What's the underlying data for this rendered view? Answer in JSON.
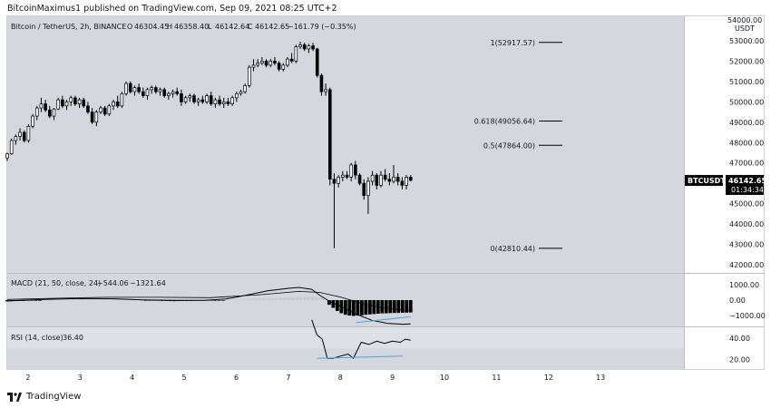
{
  "header": {
    "publisher_line": "BitcoinMaximus1 published on TradingView.com, Sep 09, 2021 08:25 UTC+2"
  },
  "footer": {
    "brand": "TradingView",
    "logo_icon": "tradingview-logo-icon"
  },
  "colors": {
    "up": "#ffffff",
    "down": "#000000",
    "pane_bg": "#d4d8de",
    "rsi_band": "#dde0e5",
    "hist_pos": "#c9cbd0",
    "hist_neg": "#000000",
    "trendline": "#4aa3df",
    "price_tag_bg": "#000000"
  },
  "chart_data": {
    "type": "candlestick",
    "symbol_line": {
      "title": "Bitcoin / TetherUS, 2h, BINANCE",
      "open": "O",
      "open_value": "46304.45",
      "high": "H",
      "high_value": "46358.40",
      "low": "L",
      "low_value": "46142.64",
      "close": "C",
      "close_value": "46142.65",
      "change": "−161.79 (−0.35%)"
    },
    "price_axis": {
      "ticks": [
        42000,
        43000,
        44000,
        45000,
        46000,
        47000,
        48000,
        49000,
        50000,
        51000,
        52000,
        53000
      ],
      "tick_labels": [
        "42000.00",
        "43000.00",
        "44000.00",
        "45000.00",
        "46000.00",
        "47000.00",
        "48000.00",
        "49000.00",
        "50000.00",
        "51000.00",
        "52000.00",
        "53000.00"
      ],
      "top_labels": [
        "54000.00",
        "USDT"
      ],
      "ylim": [
        41600,
        54200
      ]
    },
    "x_axis": {
      "ticks": [
        "2",
        "3",
        "4",
        "5",
        "6",
        "7",
        "8",
        "9",
        "10",
        "11",
        "12",
        "13"
      ],
      "tick_day_values": [
        2,
        3,
        4,
        5,
        6,
        7,
        8,
        9,
        10,
        11,
        12,
        13
      ],
      "xlim": [
        1.6,
        14.6
      ]
    },
    "fib_levels": [
      {
        "ratio": "1",
        "price": 52917.57,
        "label": "1(52917.57)"
      },
      {
        "ratio": "0.618",
        "price": 49056.64,
        "label": "0.618(49056.64)"
      },
      {
        "ratio": "0.5",
        "price": 47864.0,
        "label": "0.5(47864.00)"
      },
      {
        "ratio": "0",
        "price": 42810.44,
        "label": "0(42810.44)"
      }
    ],
    "price_tag": {
      "symbol": "BTCUSDT",
      "price": "46142.65",
      "countdown": "01:34:34",
      "value": 46142.65
    },
    "candles_day": [
      1.6,
      9.35
    ],
    "candles": [
      [
        47250,
        47500,
        47100,
        47450
      ],
      [
        47450,
        48200,
        47400,
        48100
      ],
      [
        48100,
        48400,
        47900,
        48300
      ],
      [
        48300,
        48700,
        48100,
        48500
      ],
      [
        48500,
        48600,
        48000,
        48100
      ],
      [
        48100,
        48900,
        48000,
        48800
      ],
      [
        48800,
        49400,
        48700,
        49300
      ],
      [
        49300,
        49800,
        49100,
        49700
      ],
      [
        49700,
        50200,
        49500,
        49900
      ],
      [
        49900,
        50100,
        49500,
        49600
      ],
      [
        49600,
        49800,
        49200,
        49300
      ],
      [
        49300,
        49700,
        49100,
        49650
      ],
      [
        49650,
        50200,
        49600,
        50100
      ],
      [
        50100,
        50300,
        49700,
        49800
      ],
      [
        49800,
        50100,
        49600,
        50000
      ],
      [
        50000,
        50300,
        49800,
        50200
      ],
      [
        50200,
        50300,
        49800,
        49900
      ],
      [
        49900,
        50200,
        49700,
        50100
      ],
      [
        50100,
        50200,
        49700,
        49800
      ],
      [
        49800,
        50000,
        49400,
        49500
      ],
      [
        49500,
        49700,
        48900,
        49000
      ],
      [
        49000,
        49600,
        48800,
        49500
      ],
      [
        49500,
        49800,
        49400,
        49700
      ],
      [
        49700,
        49800,
        49300,
        49400
      ],
      [
        49400,
        49900,
        49300,
        49800
      ],
      [
        49800,
        50100,
        49600,
        50000
      ],
      [
        50000,
        50300,
        49700,
        49800
      ],
      [
        49800,
        50500,
        49700,
        50400
      ],
      [
        50400,
        51000,
        50300,
        50900
      ],
      [
        50900,
        51000,
        50400,
        50500
      ],
      [
        50500,
        50800,
        50300,
        50700
      ],
      [
        50700,
        50900,
        50400,
        50500
      ],
      [
        50500,
        50700,
        50200,
        50300
      ],
      [
        50300,
        50700,
        50100,
        50600
      ],
      [
        50600,
        50800,
        50400,
        50700
      ],
      [
        50700,
        50800,
        50400,
        50500
      ],
      [
        50500,
        50700,
        50300,
        50600
      ],
      [
        50600,
        50700,
        50200,
        50300
      ],
      [
        50300,
        50500,
        50100,
        50400
      ],
      [
        50400,
        50600,
        50200,
        50500
      ],
      [
        50500,
        50700,
        50300,
        50400
      ],
      [
        50400,
        50600,
        49800,
        50000
      ],
      [
        50000,
        50300,
        49900,
        50200
      ],
      [
        50200,
        50400,
        50000,
        50300
      ],
      [
        50300,
        50400,
        49900,
        50000
      ],
      [
        50000,
        50200,
        49800,
        50100
      ],
      [
        50100,
        50300,
        49900,
        50000
      ],
      [
        50000,
        50400,
        49900,
        50300
      ],
      [
        50300,
        50500,
        49800,
        49900
      ],
      [
        49900,
        50200,
        49700,
        50100
      ],
      [
        50100,
        50300,
        49800,
        49900
      ],
      [
        49900,
        50200,
        49700,
        50000
      ],
      [
        50000,
        50200,
        49800,
        49900
      ],
      [
        49900,
        50300,
        49800,
        50200
      ],
      [
        50200,
        50500,
        50000,
        50400
      ],
      [
        50400,
        50600,
        50300,
        50500
      ],
      [
        50500,
        50900,
        50400,
        50800
      ],
      [
        50800,
        51800,
        50700,
        51700
      ],
      [
        51700,
        52100,
        51500,
        51800
      ],
      [
        51800,
        52100,
        51700,
        51900
      ],
      [
        51900,
        52200,
        51800,
        52000
      ],
      [
        52000,
        52100,
        51700,
        51800
      ],
      [
        51800,
        52100,
        51700,
        52000
      ],
      [
        52000,
        52200,
        51800,
        51900
      ],
      [
        51900,
        52000,
        51500,
        51600
      ],
      [
        51600,
        51900,
        51500,
        51800
      ],
      [
        51800,
        52200,
        51700,
        52100
      ],
      [
        52100,
        52400,
        51900,
        52000
      ],
      [
        52000,
        52800,
        51900,
        52700
      ],
      [
        52700,
        52950,
        52600,
        52800
      ],
      [
        52800,
        52900,
        52500,
        52600
      ],
      [
        52600,
        52850,
        52400,
        52750
      ],
      [
        52750,
        52900,
        52500,
        52600
      ],
      [
        52600,
        52650,
        51200,
        51300
      ],
      [
        51300,
        51400,
        50300,
        50500
      ],
      [
        50500,
        50900,
        50300,
        50600
      ],
      [
        50600,
        50700,
        45900,
        46200
      ],
      [
        46200,
        46500,
        42810,
        46000
      ],
      [
        46000,
        46400,
        45800,
        46300
      ],
      [
        46300,
        46600,
        46100,
        46400
      ],
      [
        46400,
        46600,
        46200,
        46300
      ],
      [
        46300,
        47000,
        46100,
        46900
      ],
      [
        46900,
        47100,
        46200,
        46400
      ],
      [
        46400,
        46500,
        45900,
        46000
      ],
      [
        46000,
        46200,
        45200,
        45400
      ],
      [
        45400,
        46300,
        44500,
        46100
      ],
      [
        46100,
        46600,
        45900,
        46400
      ],
      [
        46400,
        46500,
        45700,
        45900
      ],
      [
        45900,
        46600,
        45800,
        46400
      ],
      [
        46400,
        46700,
        46100,
        46200
      ],
      [
        46200,
        46500,
        45900,
        46100
      ],
      [
        46100,
        46900,
        46000,
        46300
      ],
      [
        46300,
        46500,
        45900,
        46100
      ],
      [
        46100,
        46300,
        45700,
        45900
      ],
      [
        45900,
        46400,
        45700,
        46300
      ],
      [
        46300,
        46400,
        46100,
        46142.65
      ]
    ],
    "macd": {
      "title": "MACD (21, 50, close, 24)",
      "value_labels": [
        "−544.06",
        "−1321.64"
      ],
      "ticks": [
        1000,
        0,
        -1000
      ],
      "tick_labels": [
        "1000.00",
        "0.00",
        "−1000.00"
      ],
      "ylim": [
        -1700,
        1700
      ],
      "macd_line": [
        [
          1.6,
          -50
        ],
        [
          2.3,
          40
        ],
        [
          3.0,
          100
        ],
        [
          3.6,
          90
        ],
        [
          4.2,
          20
        ],
        [
          4.8,
          -10
        ],
        [
          5.4,
          -20
        ],
        [
          5.8,
          70
        ],
        [
          6.2,
          320
        ],
        [
          6.6,
          600
        ],
        [
          7.0,
          760
        ],
        [
          7.2,
          820
        ],
        [
          7.45,
          700
        ],
        [
          7.6,
          320
        ],
        [
          7.8,
          -100
        ],
        [
          8.0,
          -400
        ],
        [
          8.3,
          -900
        ],
        [
          8.6,
          -1300
        ],
        [
          8.9,
          -1500
        ],
        [
          9.2,
          -1560
        ],
        [
          9.35,
          -1540
        ]
      ],
      "signal_line": [
        [
          1.6,
          40
        ],
        [
          2.5,
          120
        ],
        [
          3.5,
          180
        ],
        [
          4.5,
          180
        ],
        [
          5.5,
          160
        ],
        [
          6.5,
          360
        ],
        [
          7.2,
          560
        ],
        [
          7.6,
          500
        ],
        [
          8.0,
          200
        ],
        [
          8.4,
          -200
        ],
        [
          8.8,
          -500
        ],
        [
          9.35,
          -700
        ]
      ],
      "histogram_day": [
        1.6,
        9.35
      ],
      "histogram": [
        -80,
        -70,
        -60,
        -55,
        -50,
        -40,
        -30,
        -20,
        -10,
        0,
        10,
        20,
        30,
        40,
        50,
        60,
        70,
        80,
        90,
        100,
        110,
        110,
        105,
        100,
        90,
        80,
        70,
        60,
        50,
        40,
        30,
        20,
        10,
        0,
        -10,
        -20,
        -30,
        -40,
        -50,
        -55,
        -60,
        -65,
        -60,
        -55,
        -50,
        -45,
        -40,
        -35,
        -30,
        -25,
        -20,
        -15,
        -10,
        -5,
        0,
        10,
        20,
        40,
        60,
        80,
        90,
        100,
        110,
        120,
        130,
        140,
        150,
        160,
        170,
        180,
        190,
        200,
        210,
        220,
        230,
        230,
        200,
        150,
        100,
        -300,
        -500,
        -700,
        -850,
        -950,
        -1000,
        -1020,
        -1000,
        -980,
        -950,
        -920,
        -900,
        -880,
        -860,
        -850,
        -840,
        -830,
        -830,
        -820,
        -810,
        -800
      ],
      "bullish_divergence_line": [
        [
          8.3,
          -1450
        ],
        [
          9.35,
          -1080
        ]
      ]
    },
    "rsi": {
      "title": "RSI (14, close)",
      "value_label": "36.40",
      "ticks": [
        40,
        20
      ],
      "tick_labels": [
        "40.00",
        "20.00"
      ],
      "ylim": [
        11,
        50
      ],
      "band": [
        30,
        70
      ],
      "rsi_line": [
        [
          7.45,
          57
        ],
        [
          7.55,
          43
        ],
        [
          7.65,
          39
        ],
        [
          7.75,
          21
        ],
        [
          7.85,
          21
        ],
        [
          8.0,
          23
        ],
        [
          8.15,
          25
        ],
        [
          8.25,
          21
        ],
        [
          8.4,
          36
        ],
        [
          8.55,
          34
        ],
        [
          8.7,
          37
        ],
        [
          8.85,
          35
        ],
        [
          9.0,
          37
        ],
        [
          9.15,
          36
        ],
        [
          9.25,
          39
        ],
        [
          9.35,
          38
        ]
      ],
      "bullish_divergence_line": [
        [
          7.55,
          21
        ],
        [
          9.2,
          23
        ]
      ]
    }
  }
}
